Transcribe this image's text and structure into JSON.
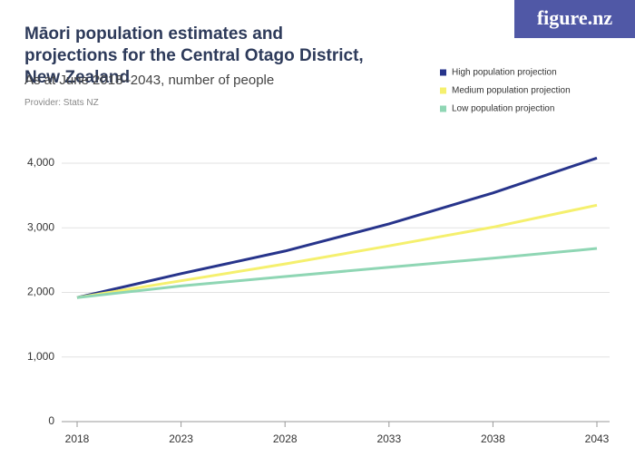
{
  "logo": "figure.nz",
  "chart_data": {
    "type": "line",
    "title": "Māori population estimates and projections for the Central Otago District, New Zealand",
    "subtitle": "As at June 2018–2043, number of people",
    "provider": "Provider: Stats NZ",
    "x": [
      2018,
      2023,
      2028,
      2033,
      2038,
      2043
    ],
    "xlim": [
      2018,
      2043
    ],
    "xticks": [
      2018,
      2023,
      2028,
      2033,
      2038,
      2043
    ],
    "ylim": [
      0,
      4000
    ],
    "yticks": [
      0,
      {
        "value": 1000,
        "label": "1,000"
      },
      {
        "value": 2000,
        "label": "2,000"
      },
      {
        "value": 3000,
        "label": "3,000"
      },
      {
        "value": 4000,
        "label": "4,000"
      }
    ],
    "grid": true,
    "legend": "top-right",
    "series": [
      {
        "name": "High population projection",
        "color": "#27348b",
        "values": [
          1920,
          2290,
          2640,
          3060,
          3540,
          4080
        ]
      },
      {
        "name": "Medium population projection",
        "color": "#f5f06e",
        "values": [
          1920,
          2180,
          2440,
          2720,
          3010,
          3350
        ]
      },
      {
        "name": "Low population projection",
        "color": "#8fd6b4",
        "values": [
          1920,
          2100,
          2245,
          2390,
          2530,
          2680
        ]
      }
    ]
  }
}
